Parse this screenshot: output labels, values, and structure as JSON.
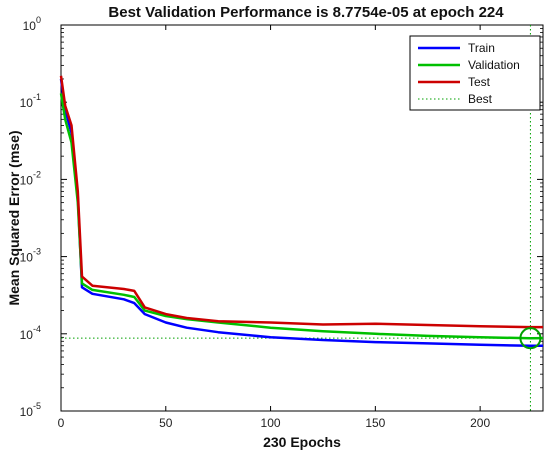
{
  "chart_data": {
    "type": "line",
    "title": "Best Validation Performance is 8.7754e-05 at epoch 224",
    "xlabel": "230 Epochs",
    "ylabel": "Mean Squared Error  (mse)",
    "x_scale": "linear",
    "y_scale": "log",
    "xlim": [
      0,
      230
    ],
    "ylim": [
      1e-05,
      1
    ],
    "x_ticks": [
      0,
      50,
      100,
      150,
      200
    ],
    "y_ticks": [
      {
        "value": 1e-05,
        "base": "10",
        "exp": "-5"
      },
      {
        "value": 0.0001,
        "base": "10",
        "exp": "-4"
      },
      {
        "value": 0.001,
        "base": "10",
        "exp": "-3"
      },
      {
        "value": 0.01,
        "base": "10",
        "exp": "-2"
      },
      {
        "value": 0.1,
        "base": "10",
        "exp": "-1"
      },
      {
        "value": 1,
        "base": "10",
        "exp": "0"
      }
    ],
    "grid": false,
    "legend_position": "top-right",
    "series": [
      {
        "name": "Train",
        "color": "#0000ff",
        "points": [
          [
            0,
            0.2
          ],
          [
            2,
            0.08
          ],
          [
            5,
            0.04
          ],
          [
            8,
            0.006
          ],
          [
            10,
            0.0004
          ],
          [
            15,
            0.00033
          ],
          [
            30,
            0.00028
          ],
          [
            35,
            0.00025
          ],
          [
            40,
            0.00018
          ],
          [
            50,
            0.00014
          ],
          [
            60,
            0.00012
          ],
          [
            75,
            0.000105
          ],
          [
            100,
            9e-05
          ],
          [
            125,
            8.3e-05
          ],
          [
            150,
            7.8e-05
          ],
          [
            175,
            7.5e-05
          ],
          [
            200,
            7.2e-05
          ],
          [
            224,
            7e-05
          ],
          [
            230,
            7e-05
          ]
        ]
      },
      {
        "name": "Validation",
        "color": "#00c000",
        "points": [
          [
            0,
            0.13
          ],
          [
            2,
            0.06
          ],
          [
            5,
            0.03
          ],
          [
            8,
            0.005
          ],
          [
            10,
            0.00045
          ],
          [
            15,
            0.00037
          ],
          [
            30,
            0.00032
          ],
          [
            35,
            0.0003
          ],
          [
            40,
            0.0002
          ],
          [
            50,
            0.00017
          ],
          [
            60,
            0.000155
          ],
          [
            75,
            0.00014
          ],
          [
            100,
            0.00012
          ],
          [
            125,
            0.000108
          ],
          [
            150,
            0.0001
          ],
          [
            175,
            9.4e-05
          ],
          [
            200,
            9e-05
          ],
          [
            224,
            8.7754e-05
          ],
          [
            230,
            8.8e-05
          ]
        ]
      },
      {
        "name": "Test",
        "color": "#cc0000",
        "points": [
          [
            0,
            0.22
          ],
          [
            2,
            0.09
          ],
          [
            5,
            0.05
          ],
          [
            8,
            0.007
          ],
          [
            10,
            0.00055
          ],
          [
            15,
            0.00042
          ],
          [
            30,
            0.00038
          ],
          [
            35,
            0.00036
          ],
          [
            40,
            0.00022
          ],
          [
            50,
            0.00018
          ],
          [
            60,
            0.00016
          ],
          [
            75,
            0.000145
          ],
          [
            100,
            0.00014
          ],
          [
            125,
            0.000132
          ],
          [
            150,
            0.000135
          ],
          [
            175,
            0.00013
          ],
          [
            200,
            0.000125
          ],
          [
            224,
            0.000122
          ],
          [
            230,
            0.000122
          ]
        ]
      }
    ],
    "best": {
      "label": "Best",
      "epoch": 224,
      "value": 8.7754e-05,
      "color": "#00a000"
    }
  }
}
